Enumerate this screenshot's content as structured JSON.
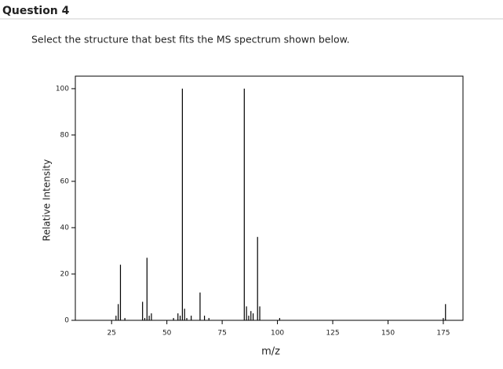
{
  "header": {
    "title": "Question 4"
  },
  "question": {
    "text": "Select the structure that best fits the MS spectrum shown below."
  },
  "chart_data": {
    "type": "stem",
    "x_label": "m/z",
    "y_label": "Relative Intensity",
    "x": [
      27,
      28,
      29,
      31,
      39,
      40,
      41,
      42,
      43,
      53,
      55,
      56,
      57,
      58,
      59,
      61,
      65,
      67,
      69,
      85,
      86,
      87,
      88,
      89,
      91,
      92,
      101,
      175,
      176
    ],
    "values": [
      2,
      7,
      24,
      1,
      8,
      1,
      27,
      2,
      3,
      1,
      3,
      2,
      100,
      5,
      1,
      2,
      12,
      2,
      1,
      100,
      6,
      2,
      4,
      3,
      36,
      6,
      1,
      1,
      7
    ],
    "color": "#000000",
    "xlim": [
      8.6,
      183.9
    ],
    "ylim": [
      0,
      105.4
    ],
    "xticks": [
      25,
      50,
      75,
      100,
      125,
      150,
      175
    ],
    "yticks": [
      0,
      20,
      40,
      60,
      80,
      100
    ]
  }
}
